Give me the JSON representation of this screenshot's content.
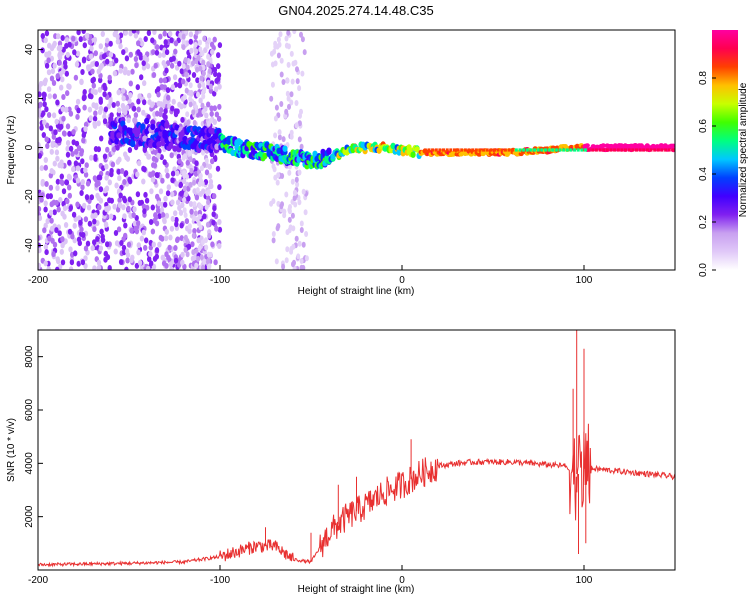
{
  "title": "GN04.2025.274.14.48.C35",
  "chart_data": [
    {
      "type": "heatmap",
      "xlabel": "Height of straight line (km)",
      "ylabel": "Frequency (Hz)",
      "xlim": [
        -200,
        150
      ],
      "ylim": [
        -50,
        48
      ],
      "xticks": [
        -200,
        -100,
        0,
        100
      ],
      "yticks": [
        40,
        20,
        0,
        -20,
        -40
      ],
      "colorbar": {
        "label": "Normalized spectral amplitude",
        "range": [
          0,
          1
        ],
        "ticks": [
          "0.0",
          "0.2",
          "0.4",
          "0.6",
          "0.8"
        ],
        "colors": [
          "#ffffff",
          "#e0c8f8",
          "#c8a0f0",
          "#8020f0",
          "#4000ff",
          "#0040ff",
          "#00c8ff",
          "#00ff80",
          "#40ff00",
          "#c8ff00",
          "#ffc000",
          "#ff4000",
          "#ff0050",
          "#ff00a0"
        ]
      },
      "ridge": {
        "x": [
          -200,
          -160,
          -140,
          -120,
          -110,
          -100,
          -90,
          -80,
          -70,
          -60,
          -50,
          -45,
          -40,
          -30,
          -20,
          -10,
          0,
          10,
          20,
          40,
          60,
          80,
          90,
          95,
          100,
          120,
          150
        ],
        "y": [
          10,
          7,
          6,
          4,
          3,
          2,
          0,
          -1,
          -2,
          -4,
          -5,
          -5,
          -4,
          -1,
          0,
          0,
          -1,
          -2,
          -2,
          -2,
          -2,
          -1,
          0,
          0,
          0,
          0,
          0
        ]
      }
    },
    {
      "type": "line",
      "xlabel": "Height of straight line (km)",
      "ylabel": "SNR (10 * v/v)",
      "xlim": [
        -200,
        150
      ],
      "ylim": [
        0,
        9000
      ],
      "xticks": [
        -200,
        -100,
        0,
        100
      ],
      "yticks": [
        2000,
        4000,
        6000,
        8000
      ],
      "color": "#e83030",
      "envelope": {
        "x": [
          -200,
          -150,
          -120,
          -100,
          -90,
          -80,
          -70,
          -60,
          -50,
          -40,
          -30,
          -20,
          -10,
          0,
          10,
          20,
          30,
          40,
          60,
          80,
          90,
          95,
          98,
          100,
          105,
          120,
          150
        ],
        "y": [
          200,
          250,
          300,
          500,
          700,
          900,
          900,
          400,
          300,
          1400,
          2000,
          2400,
          2900,
          3200,
          3600,
          3900,
          4000,
          4050,
          4050,
          3950,
          3900,
          3600,
          3600,
          3800,
          3800,
          3700,
          3500
        ]
      },
      "spikes": [
        {
          "x": 96,
          "y": 9000
        },
        {
          "x": 97,
          "y": 600
        },
        {
          "x": 100,
          "y": 8300
        },
        {
          "x": 101,
          "y": 1000
        },
        {
          "x": 94,
          "y": 6800
        },
        {
          "x": 5,
          "y": 4900
        },
        {
          "x": -25,
          "y": 3500
        },
        {
          "x": -35,
          "y": 3200
        },
        {
          "x": -50,
          "y": 1400
        },
        {
          "x": -75,
          "y": 1600
        }
      ]
    }
  ]
}
